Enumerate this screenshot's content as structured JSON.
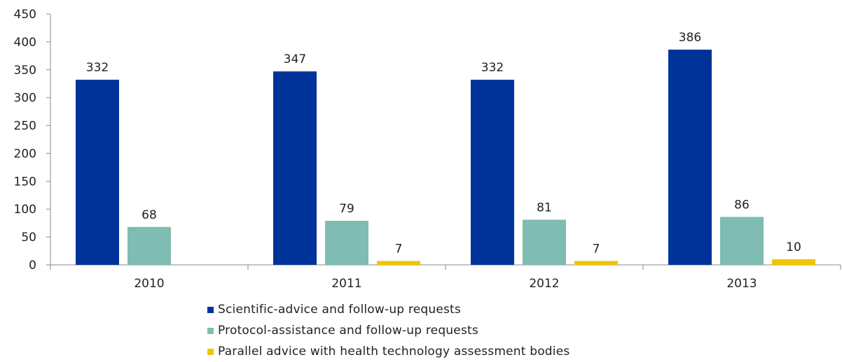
{
  "chart_data": {
    "type": "bar",
    "title": "",
    "xlabel": "",
    "ylabel": "",
    "categories": [
      "2010",
      "2011",
      "2012",
      "2013"
    ],
    "series": [
      {
        "name": "Scientific-advice and follow-up requests",
        "values": [
          332,
          347,
          332,
          386
        ],
        "color": "#003399"
      },
      {
        "name": "Protocol-assistance and follow-up requests",
        "values": [
          68,
          79,
          81,
          86
        ],
        "color": "#7fbcb2"
      },
      {
        "name": "Parallel advice with health technology assessment bodies",
        "values": [
          0,
          7,
          7,
          10
        ],
        "color": "#f2c500"
      }
    ],
    "data_labels": [
      [
        "332",
        "347",
        "332",
        "386"
      ],
      [
        "68",
        "79",
        "81",
        "86"
      ],
      [
        "",
        "7",
        "7",
        "10"
      ]
    ],
    "ylim": [
      0,
      450
    ],
    "yticks": [
      "0",
      "50",
      "100",
      "150",
      "200",
      "250",
      "300",
      "350",
      "400",
      "450"
    ],
    "grid": false,
    "legend_position": "bottom"
  }
}
